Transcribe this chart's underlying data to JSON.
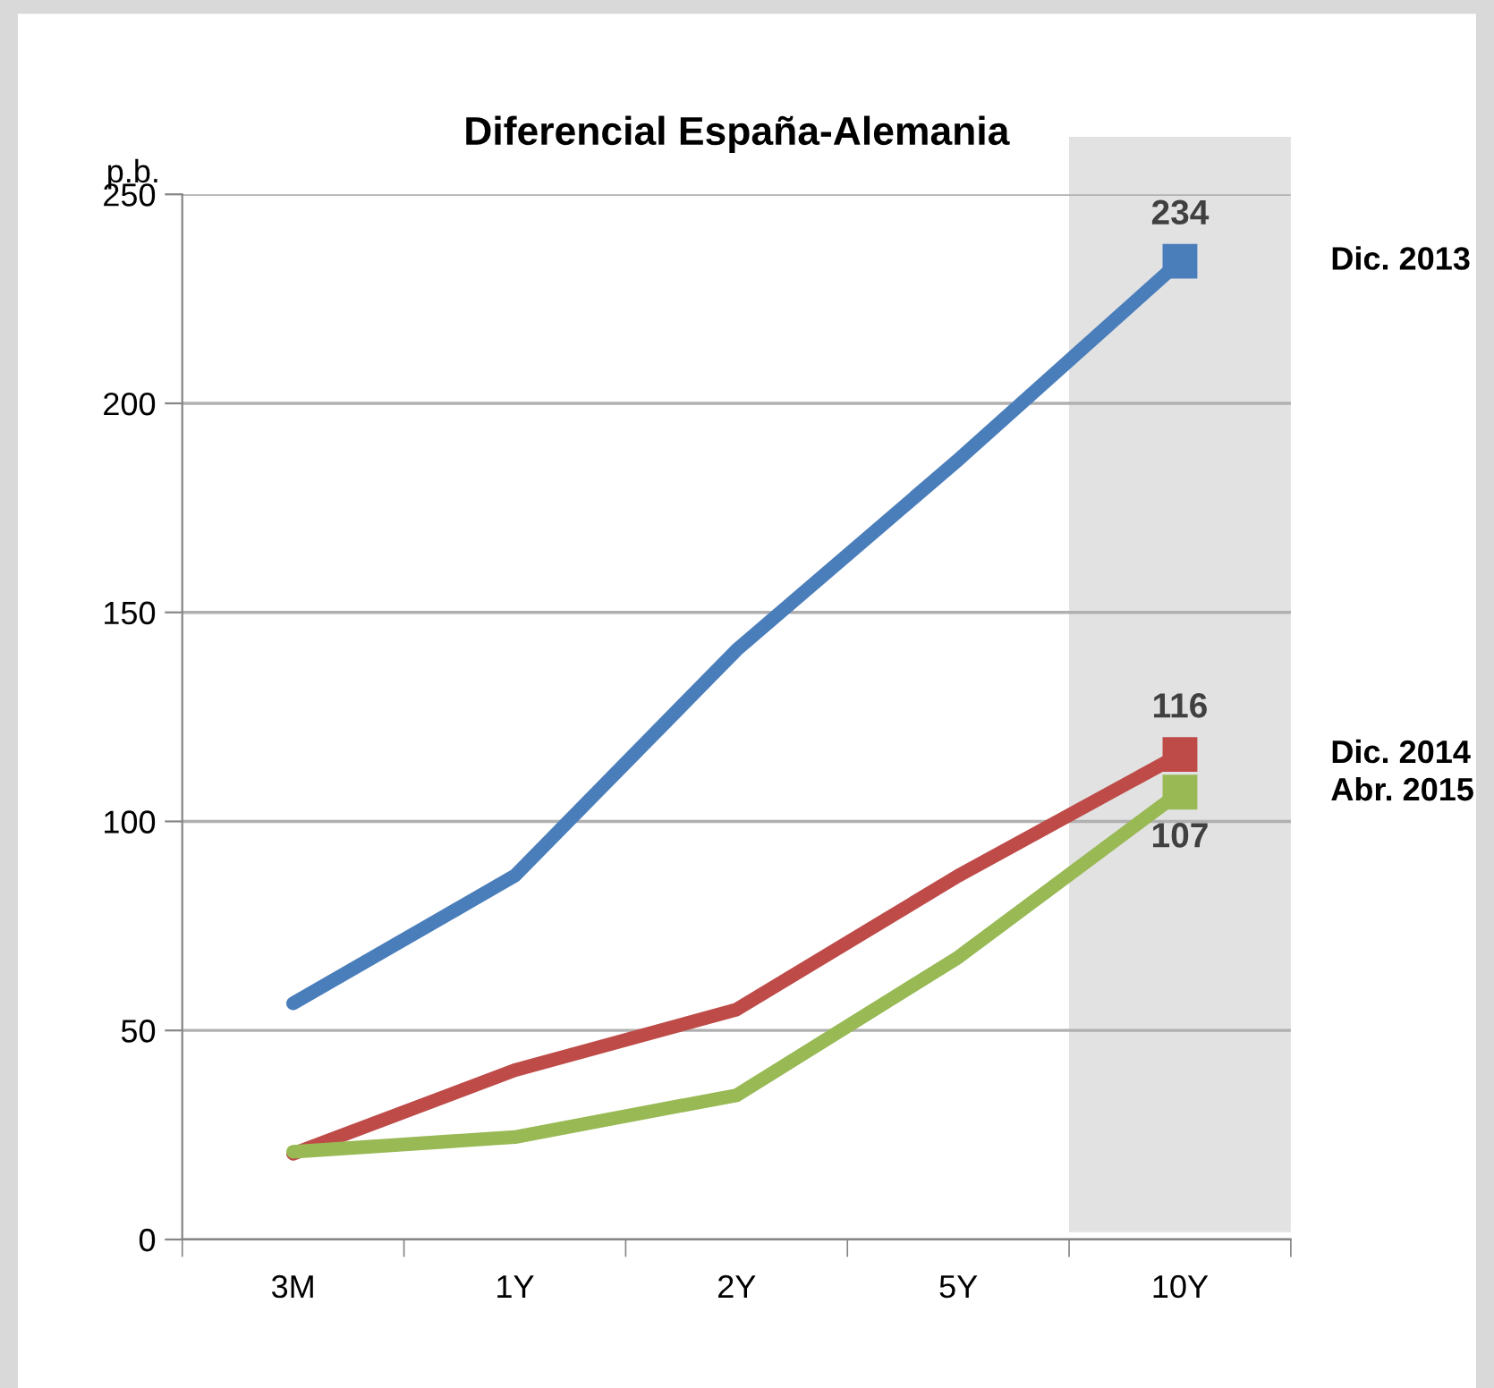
{
  "chart_data": {
    "type": "line",
    "title": "Diferencial España-Alemania",
    "ylabel": "p.b.",
    "categories": [
      "3M",
      "1Y",
      "2Y",
      "5Y",
      "10Y"
    ],
    "series": [
      {
        "name": "Dic. 2013",
        "color": "#4a7ebb",
        "values": [
          56.5,
          87,
          141,
          186.5,
          234
        ],
        "value_labels": [
          null,
          null,
          null,
          null,
          "234"
        ]
      },
      {
        "name": "Dic. 2014",
        "color": "#be4b48",
        "values": [
          20.5,
          40.5,
          55,
          87,
          116
        ],
        "value_labels": [
          null,
          null,
          null,
          null,
          "116"
        ]
      },
      {
        "name": "Abr. 2015",
        "color": "#98b954",
        "values": [
          21,
          24.5,
          34.5,
          67.5,
          107
        ],
        "value_labels": [
          null,
          null,
          null,
          null,
          "107"
        ]
      }
    ],
    "ylim": [
      0,
      250
    ],
    "yticks": [
      0,
      50,
      100,
      150,
      200,
      250
    ],
    "grid": "y",
    "legend": false,
    "line_style": "solid",
    "bands": [
      {
        "axis": "x",
        "from": "10Y",
        "to": "10Y",
        "color": "#e2e2e2"
      }
    ]
  }
}
